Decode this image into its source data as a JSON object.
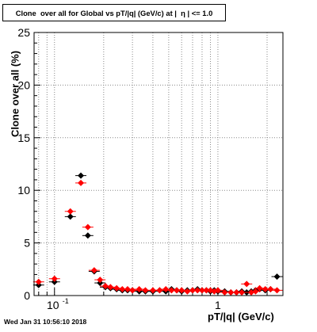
{
  "title": "Clone  over all for Global vs pT/|q| (GeV/c) at |  η | <= 1.0",
  "footer": "Wed Jan 31 10:56:10 2018",
  "colors": {
    "series_1": "#000000",
    "series_2": "#ff0000",
    "grid": "#888888"
  },
  "chart_data": {
    "type": "scatter",
    "title": "Clone  over all for Global vs pT/|q| (GeV/c) at |  η | <= 1.0",
    "xlabel": "pT/|q| (GeV/c)",
    "ylabel": "Clone  over all (%)",
    "xscale": "log",
    "xlim": [
      0.075,
      2.5
    ],
    "ylim": [
      0,
      25
    ],
    "grid": true,
    "legend": "none",
    "x_tick_labels": [
      "10^-1",
      "1"
    ],
    "y_tick_labels": [
      "0",
      "5",
      "10",
      "15",
      "20",
      "25"
    ],
    "series": [
      {
        "color": "#000000",
        "points": [
          {
            "x": 0.08,
            "y": 1.0
          },
          {
            "x": 0.1,
            "y": 1.3
          },
          {
            "x": 0.125,
            "y": 7.5
          },
          {
            "x": 0.145,
            "y": 11.4
          },
          {
            "x": 0.16,
            "y": 5.7
          },
          {
            "x": 0.175,
            "y": 2.3
          },
          {
            "x": 0.19,
            "y": 1.2
          },
          {
            "x": 0.205,
            "y": 0.8
          },
          {
            "x": 0.22,
            "y": 0.7
          },
          {
            "x": 0.24,
            "y": 0.6
          },
          {
            "x": 0.26,
            "y": 0.5
          },
          {
            "x": 0.28,
            "y": 0.5
          },
          {
            "x": 0.3,
            "y": 0.5
          },
          {
            "x": 0.33,
            "y": 0.4
          },
          {
            "x": 0.36,
            "y": 0.4
          },
          {
            "x": 0.4,
            "y": 0.4
          },
          {
            "x": 0.44,
            "y": 0.5
          },
          {
            "x": 0.48,
            "y": 0.4
          },
          {
            "x": 0.52,
            "y": 0.6
          },
          {
            "x": 0.56,
            "y": 0.5
          },
          {
            "x": 0.6,
            "y": 0.4
          },
          {
            "x": 0.65,
            "y": 0.5
          },
          {
            "x": 0.7,
            "y": 0.5
          },
          {
            "x": 0.75,
            "y": 0.6
          },
          {
            "x": 0.8,
            "y": 0.5
          },
          {
            "x": 0.85,
            "y": 0.5
          },
          {
            "x": 0.9,
            "y": 0.4
          },
          {
            "x": 0.95,
            "y": 0.5
          },
          {
            "x": 1.0,
            "y": 0.4
          },
          {
            "x": 1.1,
            "y": 0.4
          },
          {
            "x": 1.2,
            "y": 0.3
          },
          {
            "x": 1.3,
            "y": 0.3
          },
          {
            "x": 1.4,
            "y": 0.4
          },
          {
            "x": 1.5,
            "y": 0.3
          },
          {
            "x": 1.6,
            "y": 0.4
          },
          {
            "x": 1.7,
            "y": 0.5
          },
          {
            "x": 1.8,
            "y": 0.6
          },
          {
            "x": 1.95,
            "y": 0.5
          },
          {
            "x": 2.1,
            "y": 0.6
          },
          {
            "x": 2.3,
            "y": 1.8
          }
        ]
      },
      {
        "color": "#ff0000",
        "points": [
          {
            "x": 0.08,
            "y": 1.3
          },
          {
            "x": 0.1,
            "y": 1.6
          },
          {
            "x": 0.125,
            "y": 8.0
          },
          {
            "x": 0.145,
            "y": 10.7
          },
          {
            "x": 0.16,
            "y": 6.5
          },
          {
            "x": 0.175,
            "y": 2.4
          },
          {
            "x": 0.19,
            "y": 1.5
          },
          {
            "x": 0.205,
            "y": 0.9
          },
          {
            "x": 0.22,
            "y": 0.8
          },
          {
            "x": 0.24,
            "y": 0.7
          },
          {
            "x": 0.26,
            "y": 0.6
          },
          {
            "x": 0.28,
            "y": 0.6
          },
          {
            "x": 0.3,
            "y": 0.5
          },
          {
            "x": 0.33,
            "y": 0.6
          },
          {
            "x": 0.36,
            "y": 0.5
          },
          {
            "x": 0.4,
            "y": 0.5
          },
          {
            "x": 0.44,
            "y": 0.5
          },
          {
            "x": 0.48,
            "y": 0.6
          },
          {
            "x": 0.52,
            "y": 0.5
          },
          {
            "x": 0.56,
            "y": 0.5
          },
          {
            "x": 0.6,
            "y": 0.5
          },
          {
            "x": 0.65,
            "y": 0.4
          },
          {
            "x": 0.7,
            "y": 0.5
          },
          {
            "x": 0.75,
            "y": 0.5
          },
          {
            "x": 0.8,
            "y": 0.5
          },
          {
            "x": 0.85,
            "y": 0.5
          },
          {
            "x": 0.9,
            "y": 0.5
          },
          {
            "x": 0.95,
            "y": 0.4
          },
          {
            "x": 1.0,
            "y": 0.5
          },
          {
            "x": 1.1,
            "y": 0.3
          },
          {
            "x": 1.2,
            "y": 0.3
          },
          {
            "x": 1.3,
            "y": 0.3
          },
          {
            "x": 1.4,
            "y": 0.3
          },
          {
            "x": 1.5,
            "y": 1.1
          },
          {
            "x": 1.6,
            "y": 0.3
          },
          {
            "x": 1.7,
            "y": 0.4
          },
          {
            "x": 1.8,
            "y": 0.7
          },
          {
            "x": 1.95,
            "y": 0.6
          },
          {
            "x": 2.1,
            "y": 0.6
          },
          {
            "x": 2.3,
            "y": 0.5
          }
        ]
      }
    ]
  }
}
